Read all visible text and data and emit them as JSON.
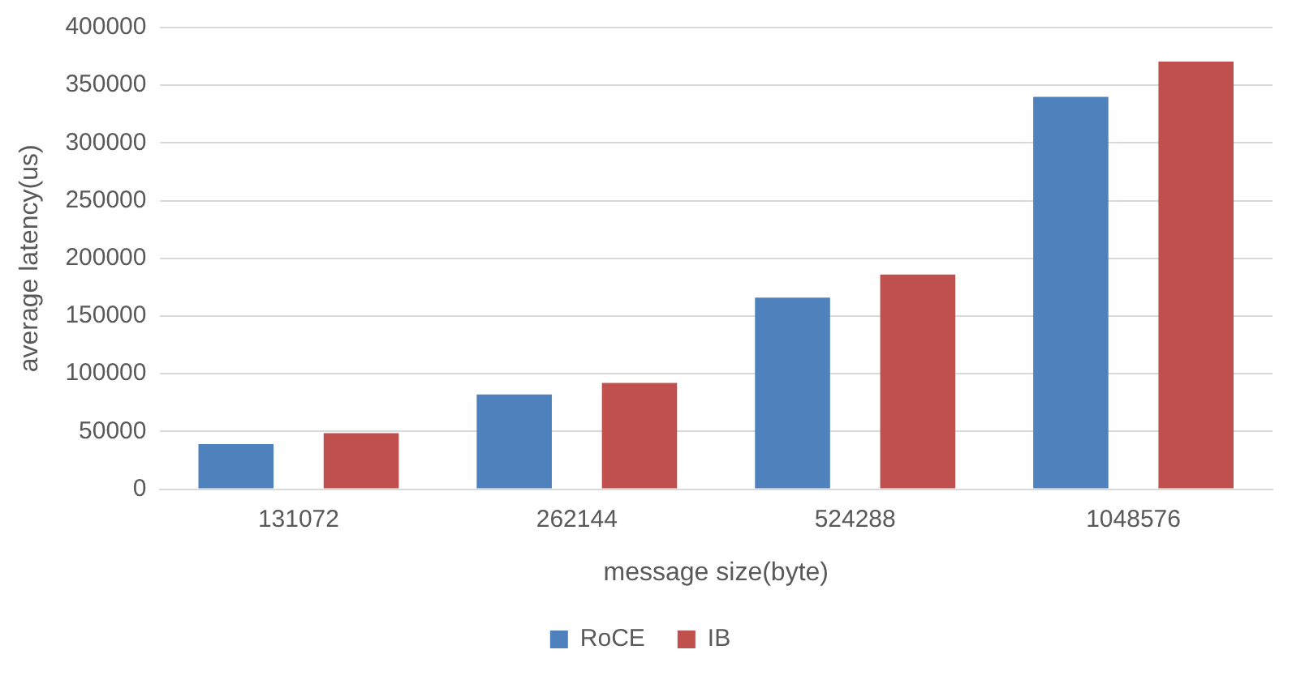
{
  "chart_data": {
    "type": "bar",
    "xlabel": "message size(byte)",
    "ylabel": "average latency(us)",
    "categories": [
      "131072",
      "262144",
      "524288",
      "1048576"
    ],
    "series": [
      {
        "name": "RoCE",
        "color": "#4f81bd",
        "values": [
          39000,
          82000,
          166000,
          340000
        ]
      },
      {
        "name": "IB",
        "color": "#c0504d",
        "values": [
          48500,
          92000,
          186000,
          370500
        ]
      }
    ],
    "ylim": [
      0,
      400000
    ],
    "yticks": [
      0,
      50000,
      100000,
      150000,
      200000,
      250000,
      300000,
      350000,
      400000
    ],
    "grid": "y",
    "legend": "bottom"
  }
}
